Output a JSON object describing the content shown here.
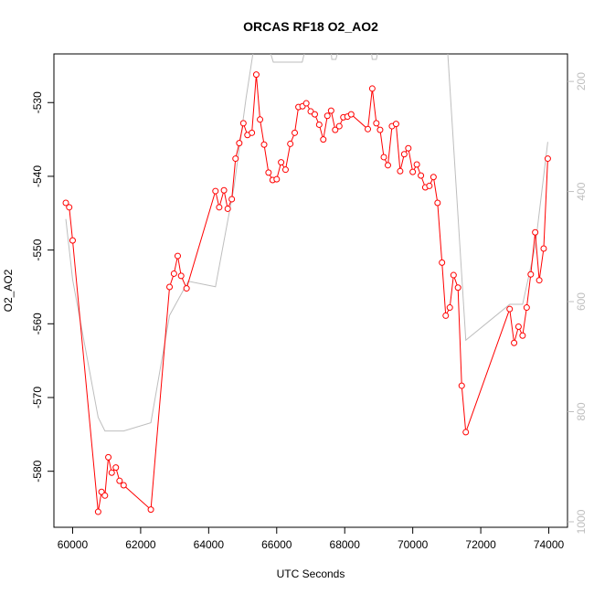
{
  "chart_data": {
    "type": "line",
    "title": "ORCAS RF18 O2_AO2",
    "xlabel": "UTC Seconds",
    "ylabel": "O2_AO2",
    "xlim": [
      59450,
      74550
    ],
    "ylim": [
      -587.6,
      -523.4
    ],
    "y2lim": [
      1010,
      150
    ],
    "x_ticks": [
      60000,
      62000,
      64000,
      66000,
      68000,
      70000,
      72000,
      74000
    ],
    "y_ticks": [
      -530,
      -540,
      -550,
      -560,
      -570,
      -580
    ],
    "y2_ticks": [
      200,
      400,
      600,
      800,
      1000
    ],
    "grid": false,
    "colors": {
      "primary": "#ff0000",
      "secondary": "#bebebe",
      "axis": "#000000"
    },
    "series": [
      {
        "marker": "circle",
        "color": "#ff0000",
        "points": [
          [
            59800,
            -543.6
          ],
          [
            59900,
            -544.2
          ],
          [
            60000,
            -548.7
          ],
          [
            60750,
            -585.5
          ],
          [
            60850,
            -582.8
          ],
          [
            60950,
            -583.3
          ],
          [
            61050,
            -578.1
          ],
          [
            61150,
            -580.2
          ],
          [
            61270,
            -579.5
          ],
          [
            61380,
            -581.3
          ],
          [
            61500,
            -581.9
          ],
          [
            62300,
            -585.2
          ],
          [
            62850,
            -555.0
          ],
          [
            62980,
            -553.2
          ],
          [
            63090,
            -550.8
          ],
          [
            63190,
            -553.5
          ],
          [
            63350,
            -555.2
          ],
          [
            64200,
            -542.0
          ],
          [
            64310,
            -544.2
          ],
          [
            64450,
            -541.9
          ],
          [
            64560,
            -544.4
          ],
          [
            64680,
            -543.1
          ],
          [
            64790,
            -537.6
          ],
          [
            64900,
            -535.5
          ],
          [
            65020,
            -532.8
          ],
          [
            65140,
            -534.4
          ],
          [
            65270,
            -534.1
          ],
          [
            65400,
            -526.2
          ],
          [
            65510,
            -532.3
          ],
          [
            65630,
            -535.7
          ],
          [
            65760,
            -539.5
          ],
          [
            65880,
            -540.5
          ],
          [
            66000,
            -540.4
          ],
          [
            66130,
            -538.1
          ],
          [
            66260,
            -539.1
          ],
          [
            66400,
            -535.6
          ],
          [
            66530,
            -534.1
          ],
          [
            66640,
            -530.6
          ],
          [
            66760,
            -530.5
          ],
          [
            66870,
            -530.1
          ],
          [
            67000,
            -531.2
          ],
          [
            67120,
            -531.6
          ],
          [
            67250,
            -533.0
          ],
          [
            67370,
            -535.0
          ],
          [
            67490,
            -531.8
          ],
          [
            67600,
            -531.1
          ],
          [
            67720,
            -533.7
          ],
          [
            67840,
            -533.2
          ],
          [
            67960,
            -532.0
          ],
          [
            68080,
            -531.9
          ],
          [
            68190,
            -531.6
          ],
          [
            68680,
            -533.6
          ],
          [
            68810,
            -528.1
          ],
          [
            68930,
            -532.8
          ],
          [
            69040,
            -533.7
          ],
          [
            69150,
            -537.4
          ],
          [
            69270,
            -538.5
          ],
          [
            69390,
            -533.2
          ],
          [
            69510,
            -532.9
          ],
          [
            69630,
            -539.3
          ],
          [
            69750,
            -537.0
          ],
          [
            69870,
            -536.2
          ],
          [
            70000,
            -539.4
          ],
          [
            70120,
            -538.4
          ],
          [
            70240,
            -539.9
          ],
          [
            70370,
            -541.5
          ],
          [
            70490,
            -541.3
          ],
          [
            70610,
            -540.1
          ],
          [
            70730,
            -543.6
          ],
          [
            70860,
            -551.7
          ],
          [
            70970,
            -558.9
          ],
          [
            71090,
            -557.8
          ],
          [
            71200,
            -553.4
          ],
          [
            71330,
            -555.1
          ],
          [
            71440,
            -568.4
          ],
          [
            71560,
            -574.7
          ],
          [
            72850,
            -558.0
          ],
          [
            72980,
            -562.6
          ],
          [
            73110,
            -560.4
          ],
          [
            73230,
            -561.6
          ],
          [
            73350,
            -557.8
          ],
          [
            73470,
            -553.3
          ],
          [
            73600,
            -547.6
          ],
          [
            73720,
            -554.1
          ],
          [
            73850,
            -549.8
          ],
          [
            73970,
            -537.6
          ]
        ]
      },
      {
        "axis": "right",
        "marker": "none",
        "color": "#bebebe",
        "points": [
          [
            59800,
            450
          ],
          [
            60000,
            560
          ],
          [
            60750,
            810
          ],
          [
            60950,
            835
          ],
          [
            61500,
            835
          ],
          [
            62300,
            820
          ],
          [
            62850,
            625
          ],
          [
            63400,
            563
          ],
          [
            64200,
            573
          ],
          [
            64750,
            390
          ],
          [
            65100,
            230
          ],
          [
            65400,
            110
          ],
          [
            65510,
            90
          ],
          [
            65630,
            110
          ],
          [
            65900,
            165
          ],
          [
            66480,
            165
          ],
          [
            66750,
            165
          ],
          [
            67000,
            100
          ],
          [
            67240,
            100
          ],
          [
            67540,
            100
          ],
          [
            67620,
            160
          ],
          [
            67740,
            160
          ],
          [
            67990,
            100
          ],
          [
            68500,
            100
          ],
          [
            68700,
            100
          ],
          [
            68810,
            160
          ],
          [
            68930,
            160
          ],
          [
            69150,
            90
          ],
          [
            70000,
            90
          ],
          [
            70860,
            90
          ],
          [
            70980,
            100
          ],
          [
            71560,
            670
          ],
          [
            72850,
            605
          ],
          [
            73230,
            605
          ],
          [
            73600,
            500
          ],
          [
            73970,
            310
          ]
        ]
      }
    ]
  }
}
